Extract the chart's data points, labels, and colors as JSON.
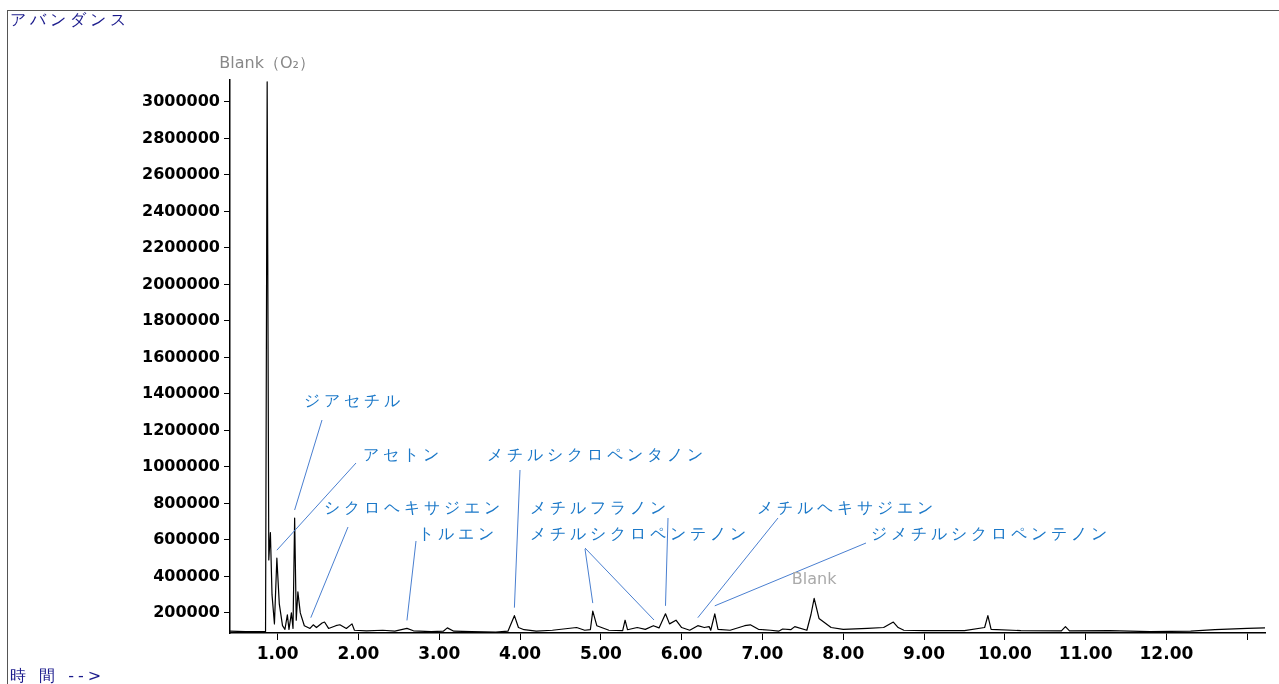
{
  "chart_data": {
    "type": "line",
    "ylabel": "アバンダンス",
    "xlabel": "時 間 -->",
    "xlim": [
      0.41,
      13.22
    ],
    "xticks": [
      {
        "value": 1,
        "label": "1.00"
      },
      {
        "value": 2,
        "label": "2.00"
      },
      {
        "value": 3,
        "label": "3.00"
      },
      {
        "value": 4,
        "label": "4.00"
      },
      {
        "value": 5,
        "label": "5.00"
      },
      {
        "value": 6,
        "label": "6.00"
      },
      {
        "value": 7,
        "label": "7.00"
      },
      {
        "value": 8,
        "label": "8.00"
      },
      {
        "value": 9,
        "label": "9.00"
      },
      {
        "value": 10,
        "label": "10.00"
      },
      {
        "value": 11,
        "label": "11.00"
      },
      {
        "value": 12,
        "label": "12.00"
      },
      {
        "value": 13,
        "label": null
      }
    ],
    "ylim": [
      90000,
      3120000
    ],
    "yticks": [
      200000,
      400000,
      600000,
      800000,
      1000000,
      1200000,
      1400000,
      1600000,
      1800000,
      2000000,
      2200000,
      2400000,
      2600000,
      2800000,
      3000000
    ],
    "x": [
      0.41,
      0.6,
      0.85,
      0.87,
      0.89,
      0.91,
      0.93,
      0.96,
      0.99,
      1.02,
      1.06,
      1.09,
      1.12,
      1.14,
      1.17,
      1.19,
      1.21,
      1.23,
      1.25,
      1.28,
      1.33,
      1.4,
      1.44,
      1.48,
      1.55,
      1.58,
      1.63,
      1.72,
      1.77,
      1.85,
      1.92,
      1.95,
      2.1,
      2.3,
      2.45,
      2.6,
      2.68,
      2.9,
      3.05,
      3.1,
      3.18,
      3.4,
      3.7,
      3.85,
      3.93,
      3.98,
      4.05,
      4.2,
      4.4,
      4.7,
      4.8,
      4.87,
      4.9,
      4.95,
      5.1,
      5.27,
      5.3,
      5.33,
      5.45,
      5.55,
      5.65,
      5.72,
      5.8,
      5.85,
      5.93,
      6.0,
      6.1,
      6.2,
      6.28,
      6.34,
      6.36,
      6.41,
      6.45,
      6.6,
      6.78,
      6.85,
      6.95,
      7.1,
      7.2,
      7.25,
      7.35,
      7.4,
      7.55,
      7.6,
      7.64,
      7.7,
      7.85,
      8.0,
      8.3,
      8.5,
      8.62,
      8.68,
      8.75,
      9.0,
      9.5,
      9.75,
      9.79,
      9.83,
      10.2,
      10.7,
      10.75,
      10.8,
      11.3,
      11.8,
      12.3,
      12.6,
      13.0,
      13.22
    ],
    "series": [
      {
        "color": "#000000",
        "values": [
          100000,
          98000,
          97000,
          3110000,
          490000,
          640000,
          300000,
          140000,
          500000,
          250000,
          130000,
          110000,
          190000,
          110000,
          200000,
          115000,
          720000,
          160000,
          315000,
          200000,
          130000,
          115000,
          135000,
          120000,
          145000,
          150000,
          115000,
          130000,
          135000,
          115000,
          140000,
          105000,
          102000,
          105000,
          100000,
          115000,
          102000,
          98000,
          100000,
          118000,
          100000,
          97000,
          95000,
          100000,
          185000,
          120000,
          108000,
          100000,
          105000,
          120000,
          105000,
          108000,
          210000,
          130000,
          105000,
          103000,
          160000,
          108000,
          120000,
          110000,
          130000,
          118000,
          195000,
          140000,
          160000,
          120000,
          105000,
          130000,
          120000,
          125000,
          105000,
          195000,
          110000,
          105000,
          130000,
          135000,
          110000,
          105000,
          100000,
          112000,
          108000,
          125000,
          105000,
          190000,
          280000,
          170000,
          120000,
          110000,
          115000,
          120000,
          150000,
          120000,
          105000,
          103000,
          103000,
          120000,
          185000,
          110000,
          103000,
          102000,
          125000,
          102000,
          103000,
          97000,
          100000,
          108000,
          115000,
          118000
        ]
      }
    ],
    "marker": "none",
    "line_style": "solid",
    "legend": false,
    "grid": false,
    "annotations": [
      {
        "text": "Blank（O₂）",
        "x": 0.87,
        "y": 3110000
      },
      {
        "text": "ジアセチル",
        "x": 1.21,
        "y": 720000
      },
      {
        "text": "アセトン",
        "x": 0.99,
        "y": 500000
      },
      {
        "text": "シクロヘキサジエン",
        "x": 1.41,
        "y": 130000
      },
      {
        "text": "トルエン",
        "x": 2.6,
        "y": 115000
      },
      {
        "text": "メチルシクロペンタノン",
        "x": 3.93,
        "y": 185000
      },
      {
        "text": "メチルフラノン",
        "x": 5.8,
        "y": 195000
      },
      {
        "text": "メチルシクロペンテノン",
        "x": 4.9,
        "y": 210000
      },
      {
        "text": "メチルヘキサジエン",
        "x": 6.2,
        "y": 130000
      },
      {
        "text": "ジメチルシクロペンテノン",
        "x": 6.41,
        "y": 195000
      },
      {
        "text": "Blank",
        "x": 7.64,
        "y": 280000
      }
    ]
  }
}
